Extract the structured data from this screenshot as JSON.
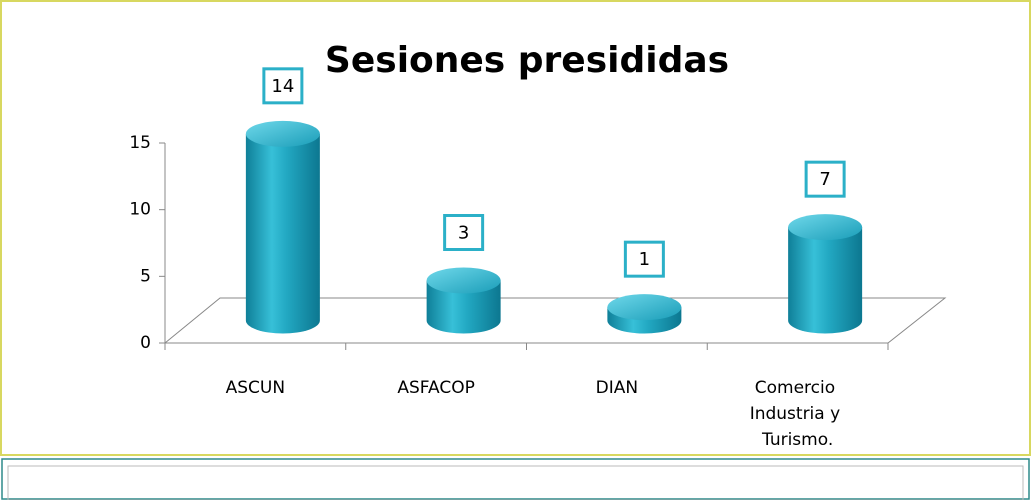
{
  "chart_data": {
    "type": "bar3d",
    "title": "Sesiones presididas",
    "categories": [
      "ASCUN",
      "ASFACOP",
      "DIAN",
      "Comercio Industria y Turismo."
    ],
    "values": [
      14,
      3,
      1,
      7
    ],
    "color": "#1ca3be",
    "ylim": [
      0,
      15
    ],
    "yticks": [
      0,
      5,
      10,
      15
    ],
    "grid": false
  }
}
